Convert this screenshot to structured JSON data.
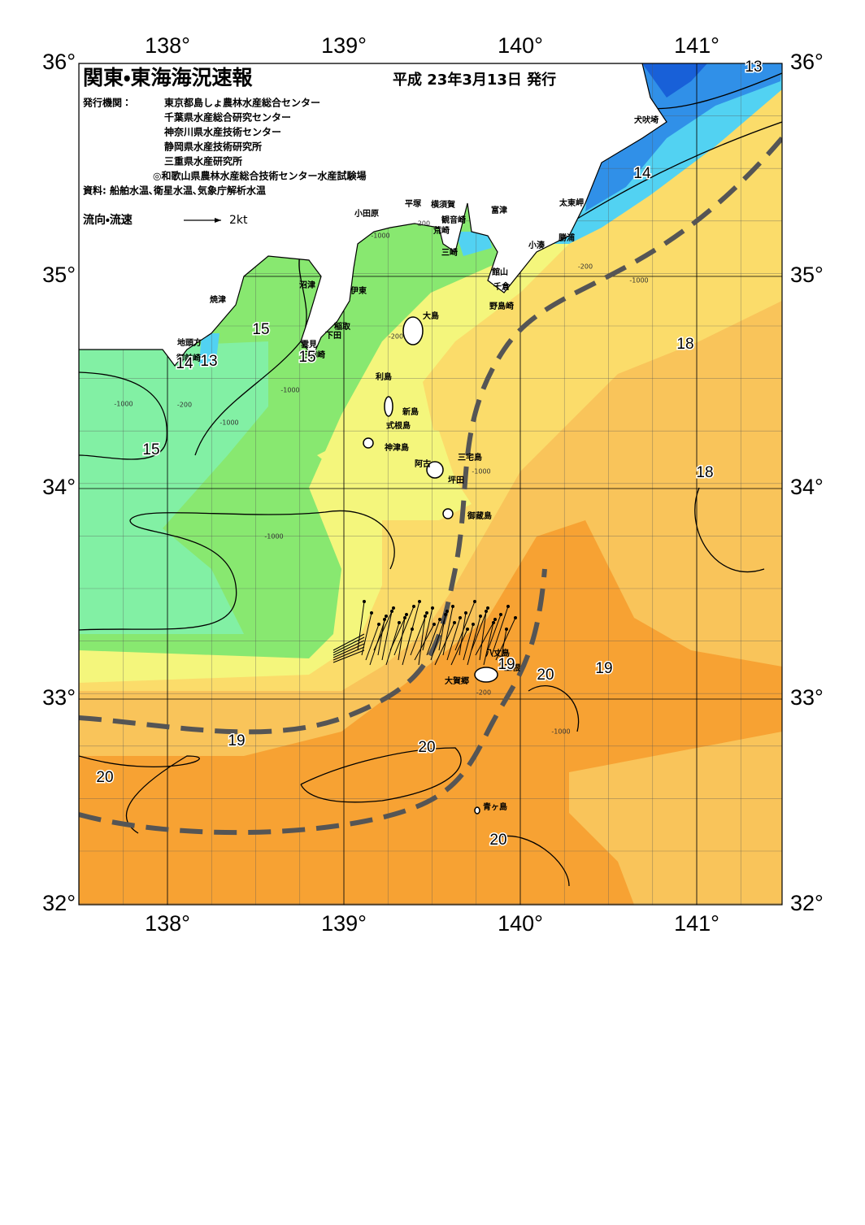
{
  "header": {
    "title": "関東・東海海況速報",
    "date": "平成 23年3月13日 発行",
    "publisher_label": "発行機関：",
    "publishers": [
      "東京都島しょ農林水産総合センター",
      "千葉県水産総合研究センター",
      "神奈川県水産技術センター",
      "静岡県水産技術研究所",
      "三重県水産研究所",
      "◎和歌山県農林水産総合技術センター水産試験場"
    ],
    "source": "資料: 船舶水温､衛星水温､気象庁解析水温",
    "legend_label": "流向・流速",
    "legend_speed": "2kt"
  },
  "map": {
    "lon_labels": [
      "138°",
      "139°",
      "140°",
      "141°"
    ],
    "lat_labels": [
      "36°",
      "35°",
      "34°",
      "33°",
      "32°"
    ],
    "places": [
      "犬吠埼",
      "太東岬",
      "勝浦",
      "小湊",
      "館山",
      "千倉",
      "野島崎",
      "富津",
      "横須賀",
      "観音崎",
      "平塚",
      "荒崎",
      "三崎",
      "小田原",
      "沼津",
      "伊東",
      "稲取",
      "下田",
      "雲見",
      "石廊崎",
      "焼津",
      "地頭方",
      "御前崎",
      "大島",
      "利島",
      "新島",
      "式根島",
      "神津島",
      "三宅島",
      "阿古",
      "坪田",
      "御蔵島",
      "八丈島",
      "三根",
      "大賀郷",
      "青ヶ島"
    ],
    "temperature_labels": [
      "13",
      "14",
      "15",
      "15",
      "13",
      "14",
      "15",
      "18",
      "18",
      "19",
      "19",
      "20",
      "19",
      "20",
      "20",
      "20"
    ],
    "depth_labels": [
      "-200",
      "-1000",
      "-200",
      "-1000",
      "-200",
      "-1000",
      "-200",
      "-1000",
      "-1000",
      "-1000",
      "-1000",
      "-200",
      "-1000"
    ]
  }
}
